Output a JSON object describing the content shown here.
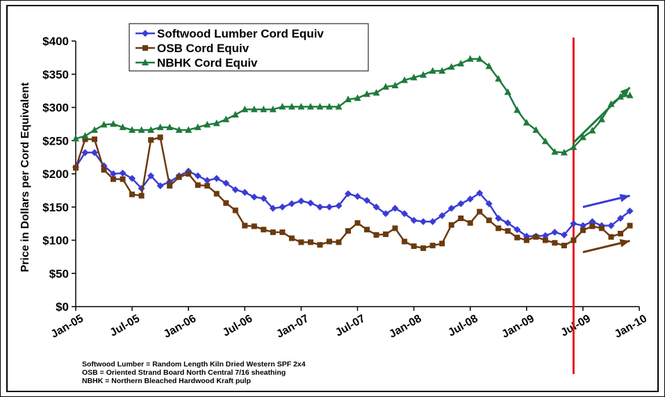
{
  "chart_data": {
    "type": "line",
    "title": "",
    "xlabel": "",
    "ylabel": "Price in Dollars per Cord Equivalent",
    "ylim": [
      0,
      400
    ],
    "y_ticks": [
      "$0",
      "$50",
      "$100",
      "$150",
      "$200",
      "$250",
      "$300",
      "$350",
      "$400"
    ],
    "x_ticks": [
      "Jan-05",
      "Jul-05",
      "Jan-06",
      "Jul-06",
      "Jan-07",
      "Jul-07",
      "Jan-08",
      "Jul-08",
      "Jan-09",
      "Jul-09",
      "Jan-10"
    ],
    "x_range": [
      "2005-01",
      "2010-01"
    ],
    "grid": false,
    "legend_position": "top-left",
    "vertical_marker": {
      "x": "2009-06",
      "color": "#e8141b"
    },
    "x": [
      "2005-01",
      "2005-02",
      "2005-03",
      "2005-04",
      "2005-05",
      "2005-06",
      "2005-07",
      "2005-08",
      "2005-09",
      "2005-10",
      "2005-11",
      "2005-12",
      "2006-01",
      "2006-02",
      "2006-03",
      "2006-04",
      "2006-05",
      "2006-06",
      "2006-07",
      "2006-08",
      "2006-09",
      "2006-10",
      "2006-11",
      "2006-12",
      "2007-01",
      "2007-02",
      "2007-03",
      "2007-04",
      "2007-05",
      "2007-06",
      "2007-07",
      "2007-08",
      "2007-09",
      "2007-10",
      "2007-11",
      "2007-12",
      "2008-01",
      "2008-02",
      "2008-03",
      "2008-04",
      "2008-05",
      "2008-06",
      "2008-07",
      "2008-08",
      "2008-09",
      "2008-10",
      "2008-11",
      "2008-12",
      "2009-01",
      "2009-02",
      "2009-03",
      "2009-04",
      "2009-05",
      "2009-06",
      "2009-07",
      "2009-08",
      "2009-09",
      "2009-10",
      "2009-11",
      "2009-12"
    ],
    "series": [
      {
        "name": "Softwood Lumber Cord Equiv",
        "color": "#3b3bd6",
        "marker": "diamond",
        "values": [
          210,
          232,
          232,
          212,
          200,
          201,
          193,
          178,
          197,
          182,
          188,
          197,
          204,
          197,
          190,
          193,
          186,
          176,
          172,
          165,
          163,
          148,
          150,
          155,
          159,
          156,
          150,
          150,
          152,
          170,
          166,
          160,
          150,
          140,
          148,
          140,
          130,
          128,
          128,
          137,
          148,
          155,
          162,
          171,
          155,
          133,
          126,
          116,
          106,
          106,
          107,
          112,
          108,
          125,
          122,
          128,
          122,
          122,
          133,
          144
        ]
      },
      {
        "name": "OSB Cord Equiv",
        "color": "#6b3a0e",
        "marker": "square",
        "values": [
          209,
          252,
          252,
          206,
          192,
          192,
          169,
          167,
          251,
          255,
          182,
          195,
          200,
          183,
          182,
          170,
          156,
          145,
          122,
          121,
          116,
          112,
          112,
          103,
          97,
          97,
          93,
          98,
          97,
          114,
          126,
          116,
          108,
          109,
          118,
          98,
          91,
          88,
          92,
          95,
          123,
          133,
          126,
          143,
          130,
          118,
          114,
          104,
          100,
          105,
          100,
          96,
          92,
          100,
          115,
          121,
          118,
          105,
          110,
          122
        ]
      },
      {
        "name": "NBHK Cord Equiv",
        "color": "#1e7a3c",
        "marker": "triangle",
        "values": [
          253,
          257,
          266,
          274,
          275,
          270,
          266,
          266,
          266,
          270,
          270,
          266,
          266,
          270,
          274,
          276,
          282,
          289,
          297,
          297,
          297,
          297,
          301,
          301,
          301,
          301,
          301,
          301,
          301,
          312,
          314,
          320,
          322,
          331,
          333,
          341,
          345,
          349,
          355,
          355,
          361,
          366,
          373,
          373,
          362,
          343,
          323,
          296,
          277,
          266,
          249,
          233,
          232,
          240,
          255,
          265,
          282,
          305,
          316,
          318
        ]
      }
    ],
    "annotations": [
      {
        "type": "arrow",
        "color": "#1e7a3c",
        "from": [
          "2009-06",
          247
        ],
        "to": [
          "2009-12",
          330
        ]
      },
      {
        "type": "arrow",
        "color": "#3b3bd6",
        "from": [
          "2009-07",
          150
        ],
        "to": [
          "2009-12",
          167
        ]
      },
      {
        "type": "arrow",
        "color": "#6b3a0e",
        "from": [
          "2009-07",
          82
        ],
        "to": [
          "2009-12",
          99
        ]
      }
    ]
  },
  "footnotes": [
    "Softwood Lumber = Random Length Kiln Dried Western SPF 2x4",
    "OSB = Oriented Strand Board North Central 7/16 sheathing",
    "NBHK = Northern Bleached Hardwood Kraft pulp"
  ]
}
